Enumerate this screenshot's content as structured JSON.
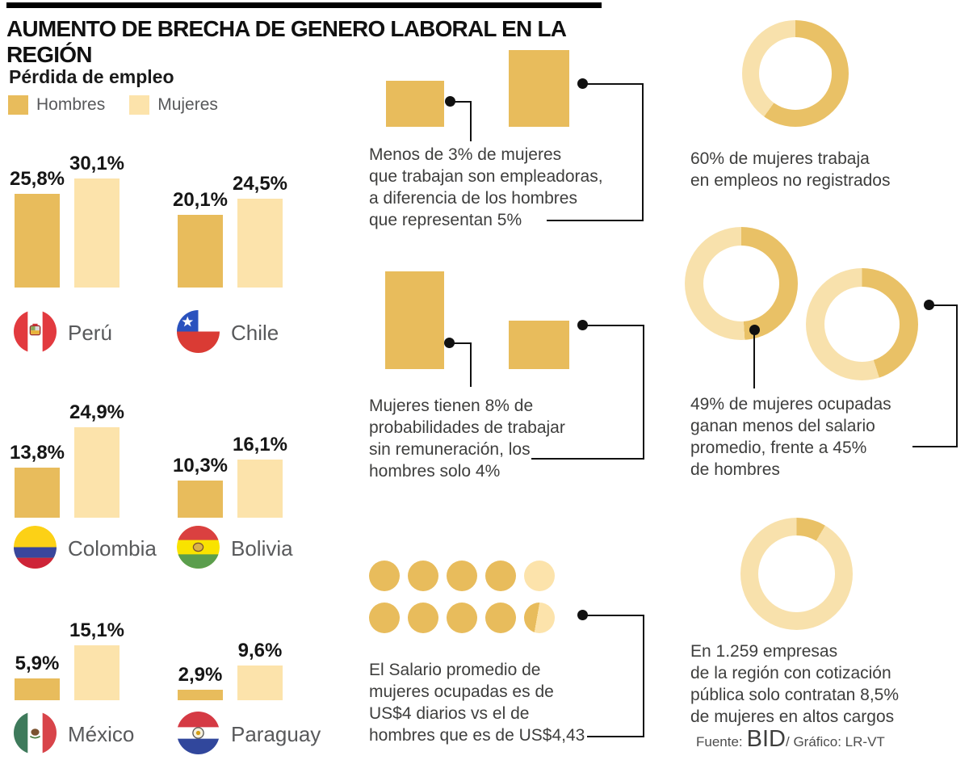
{
  "title": "AUMENTO DE BRECHA DE GENERO LABORAL EN LA REGIÓN",
  "legend": {
    "title": "Pérdida de empleo",
    "men": "Hombres",
    "women": "Mujeres"
  },
  "colors": {
    "men": "#E8BC5C",
    "women": "#FCE3AB",
    "donut_gold": "#E9C166",
    "donut_light": "#F8E1AC",
    "connector": "#111111",
    "text_dark": "#3E3E3D",
    "text_gray": "#58595B"
  },
  "chart_data": [
    {
      "id": "job-loss-by-country",
      "type": "bar",
      "title": "Pérdida de empleo",
      "unit": "%",
      "categories": [
        "Perú",
        "Chile",
        "Colombia",
        "Bolivia",
        "México",
        "Paraguay"
      ],
      "ids": [
        "peru",
        "chile",
        "colombia",
        "bolivia",
        "mexico",
        "paraguay"
      ],
      "series": [
        {
          "name": "Hombres",
          "values": [
            25.8,
            20.1,
            13.8,
            10.3,
            5.9,
            2.9
          ]
        },
        {
          "name": "Mujeres",
          "values": [
            30.1,
            24.5,
            24.9,
            16.1,
            15.1,
            9.6
          ]
        }
      ],
      "legend_position": "top-left",
      "grid": false
    },
    {
      "id": "employers-share-squares",
      "type": "area-squares",
      "items": [
        {
          "label": "mujeres",
          "value": 3
        },
        {
          "label": "hombres",
          "value": 5
        }
      ],
      "caption": "Menos de 3% de mujeres\nque trabajan son empleadoras,\na diferencia de los hombres\nque representan 5%"
    },
    {
      "id": "unpaid-work-squares",
      "type": "area-squares",
      "items": [
        {
          "label": "mujeres",
          "value": 8
        },
        {
          "label": "hombres",
          "value": 4
        }
      ],
      "caption": "Mujeres tienen 8% de\nprobabilidades de trabajar\nsin remuneración, los\nhombres solo 4%"
    },
    {
      "id": "daily-wage-pictogram",
      "type": "pictogram",
      "unit": "US$ diarios",
      "rows": [
        {
          "label": "mujeres",
          "value": 4,
          "max": 5
        },
        {
          "label": "hombres",
          "value": 4.43,
          "max": 5
        }
      ],
      "caption": "El Salario promedio de\nmujeres ocupadas es de\nUS$4 diarios vs el de\nhombres que es de US$4,43"
    },
    {
      "id": "unregistered-jobs-donut",
      "type": "pie",
      "value": 60,
      "caption": "60% de mujeres trabaja\nen empleos no registrados"
    },
    {
      "id": "below-average-salary-donuts",
      "type": "pie",
      "values": [
        {
          "label": "mujeres",
          "value": 49
        },
        {
          "label": "hombres",
          "value": 45
        }
      ],
      "caption": "49% de mujeres ocupadas\nganan menos del salario\npromedio, frente a 45%\nde hombres"
    },
    {
      "id": "women-top-jobs-donut",
      "type": "pie",
      "value": 8.5,
      "caption": "En 1.259 empresas\nde la región con cotización\npública solo contratan 8,5%\nde mujeres en altos cargos"
    }
  ],
  "footer": {
    "source_label": "Fuente:",
    "source": "BID",
    "credit": "/ Gráfico: LR-VT"
  }
}
